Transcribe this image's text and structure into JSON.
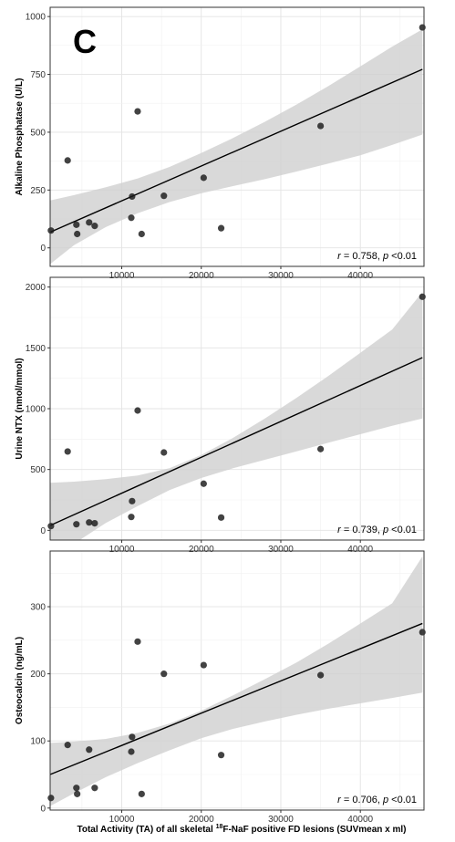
{
  "panel_letter": "C",
  "x_axis_label": {
    "before": "Total Activity (TA) of all skeletal ",
    "superscript": "18",
    "after": "F-NaF positive FD lesions (SUVmean x ml)"
  },
  "chart_data": [
    {
      "type": "scatter",
      "ylabel": "Alkaline Phosphatase (U/L)",
      "xlim": [
        1000,
        48000
      ],
      "ylim": [
        -80,
        1040
      ],
      "xticks": [
        10000,
        20000,
        30000,
        40000
      ],
      "yticks": [
        0,
        250,
        500,
        750,
        1000
      ],
      "grid": true,
      "points": [
        {
          "x": 1100,
          "y": 75
        },
        {
          "x": 3200,
          "y": 378
        },
        {
          "x": 4300,
          "y": 100
        },
        {
          "x": 4400,
          "y": 60
        },
        {
          "x": 5900,
          "y": 110
        },
        {
          "x": 6600,
          "y": 95
        },
        {
          "x": 11200,
          "y": 130
        },
        {
          "x": 11300,
          "y": 222
        },
        {
          "x": 12000,
          "y": 590
        },
        {
          "x": 12500,
          "y": 60
        },
        {
          "x": 15300,
          "y": 225
        },
        {
          "x": 20300,
          "y": 303
        },
        {
          "x": 22500,
          "y": 85
        },
        {
          "x": 35000,
          "y": 527
        },
        {
          "x": 47800,
          "y": 953
        }
      ],
      "fit_line": {
        "x": [
          1000,
          47800
        ],
        "y": [
          68,
          772
        ]
      },
      "confidence_band": {
        "x": [
          1000,
          4000,
          8000,
          12000,
          16000,
          20000,
          24000,
          28000,
          32000,
          36000,
          40000,
          44000,
          47800
        ],
        "lower": [
          -70,
          12,
          90,
          150,
          198,
          236,
          267,
          297,
          330,
          365,
          400,
          445,
          490
        ],
        "upper": [
          205,
          228,
          262,
          300,
          350,
          410,
          475,
          545,
          620,
          700,
          785,
          870,
          945
        ]
      },
      "annotation": {
        "r_label": "r",
        "r_value": " = 0.758,  ",
        "p_label": "p",
        "p_value": " <0.01"
      }
    },
    {
      "type": "scatter",
      "ylabel": "Urine NTX (nmol/mmol)",
      "xlim": [
        1000,
        48000
      ],
      "ylim": [
        -80,
        2080
      ],
      "xticks": [
        10000,
        20000,
        30000,
        40000
      ],
      "yticks": [
        0,
        500,
        1000,
        1500,
        2000
      ],
      "grid": true,
      "points": [
        {
          "x": 1100,
          "y": 35
        },
        {
          "x": 3200,
          "y": 648
        },
        {
          "x": 4300,
          "y": 50
        },
        {
          "x": 5900,
          "y": 65
        },
        {
          "x": 6600,
          "y": 58
        },
        {
          "x": 11200,
          "y": 110
        },
        {
          "x": 11300,
          "y": 240
        },
        {
          "x": 12000,
          "y": 985
        },
        {
          "x": 15300,
          "y": 640
        },
        {
          "x": 20300,
          "y": 383
        },
        {
          "x": 22500,
          "y": 105
        },
        {
          "x": 35000,
          "y": 668
        },
        {
          "x": 47800,
          "y": 1920
        }
      ],
      "fit_line": {
        "x": [
          1000,
          47800
        ],
        "y": [
          40,
          1420
        ]
      },
      "confidence_band": {
        "x": [
          1000,
          4000,
          8000,
          12000,
          16000,
          20000,
          24000,
          28000,
          32000,
          36000,
          40000,
          44000,
          47800
        ],
        "lower": [
          -280,
          -110,
          60,
          200,
          330,
          430,
          510,
          580,
          650,
          720,
          790,
          860,
          920
        ],
        "upper": [
          390,
          400,
          420,
          450,
          510,
          620,
          760,
          920,
          1090,
          1270,
          1460,
          1650,
          1960
        ]
      },
      "annotation": {
        "r_label": "r",
        "r_value": " = 0.739,  ",
        "p_label": "p",
        "p_value": " <0.01"
      }
    },
    {
      "type": "scatter",
      "ylabel": "Osteocalcin (ng/mL)",
      "xlim": [
        1000,
        48000
      ],
      "ylim": [
        -3,
        383
      ],
      "xticks": [
        10000,
        20000,
        30000,
        40000
      ],
      "yticks": [
        0,
        100,
        200,
        300
      ],
      "grid": true,
      "points": [
        {
          "x": 1100,
          "y": 15
        },
        {
          "x": 3200,
          "y": 94
        },
        {
          "x": 4300,
          "y": 30
        },
        {
          "x": 4400,
          "y": 21
        },
        {
          "x": 5900,
          "y": 87
        },
        {
          "x": 6600,
          "y": 30
        },
        {
          "x": 11200,
          "y": 84
        },
        {
          "x": 11300,
          "y": 106
        },
        {
          "x": 12000,
          "y": 248
        },
        {
          "x": 12500,
          "y": 21
        },
        {
          "x": 15300,
          "y": 200
        },
        {
          "x": 20300,
          "y": 213
        },
        {
          "x": 22500,
          "y": 79
        },
        {
          "x": 35000,
          "y": 198
        },
        {
          "x": 47800,
          "y": 262
        }
      ],
      "fit_line": {
        "x": [
          1000,
          47800
        ],
        "y": [
          50,
          275
        ]
      },
      "confidence_band": {
        "x": [
          1000,
          4000,
          8000,
          12000,
          16000,
          20000,
          24000,
          28000,
          32000,
          36000,
          40000,
          44000,
          47800
        ],
        "lower": [
          3,
          22,
          46,
          67,
          86,
          104,
          118,
          129,
          139,
          148,
          156,
          164,
          172
        ],
        "upper": [
          97,
          99,
          103,
          112,
          126,
          145,
          168,
          192,
          217,
          245,
          275,
          305,
          375
        ]
      },
      "annotation": {
        "r_label": "r",
        "r_value": " = 0.706,  ",
        "p_label": "p",
        "p_value": " <0.01"
      }
    }
  ]
}
